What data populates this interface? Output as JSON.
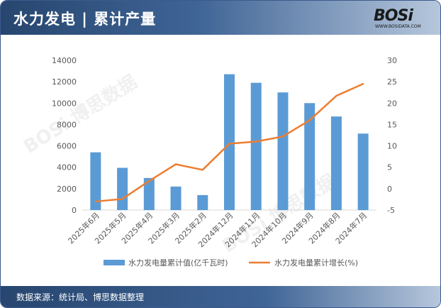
{
  "title": "水力发电 | 累计产量",
  "logo": {
    "text": "BOSi",
    "subtext": "WWW.BOSIDATA.COM"
  },
  "source": "数据来源：统计局、博思数据整理",
  "colors": {
    "bar": "#5b9bd5",
    "line": "#ed7d31",
    "axis": "#d9d9d9",
    "text": "#595959"
  },
  "chart_data": {
    "type": "bar+line",
    "categories": [
      "2025年6月",
      "2025年5月",
      "2025年4月",
      "2025年3月",
      "2025年2月",
      "2024年12月",
      "2024年11月",
      "2024年10月",
      "2024年9月",
      "2024年8月",
      "2024年7月"
    ],
    "series": [
      {
        "name": "水力发电量累计值(亿千瓦时)",
        "type": "bar",
        "axis": "left",
        "values": [
          5400,
          3950,
          3000,
          2200,
          1400,
          12700,
          11900,
          11000,
          10000,
          8750,
          7150
        ]
      },
      {
        "name": "水力发电量累计增长(%)",
        "type": "line",
        "axis": "right",
        "values": [
          -3.0,
          -2.4,
          1.8,
          5.7,
          4.4,
          10.5,
          11.0,
          12.2,
          16.0,
          21.7,
          24.5
        ]
      }
    ],
    "y_left": {
      "min": 0,
      "max": 14000,
      "ticks": [
        "0",
        "2000",
        "4000",
        "6000",
        "8000",
        "10000",
        "12000",
        "14000"
      ]
    },
    "y_right": {
      "min": -5,
      "max": 30,
      "ticks": [
        "-5",
        "0",
        "5",
        "10",
        "15",
        "20",
        "25",
        "30"
      ]
    },
    "grid": false,
    "legend_position": "bottom"
  }
}
